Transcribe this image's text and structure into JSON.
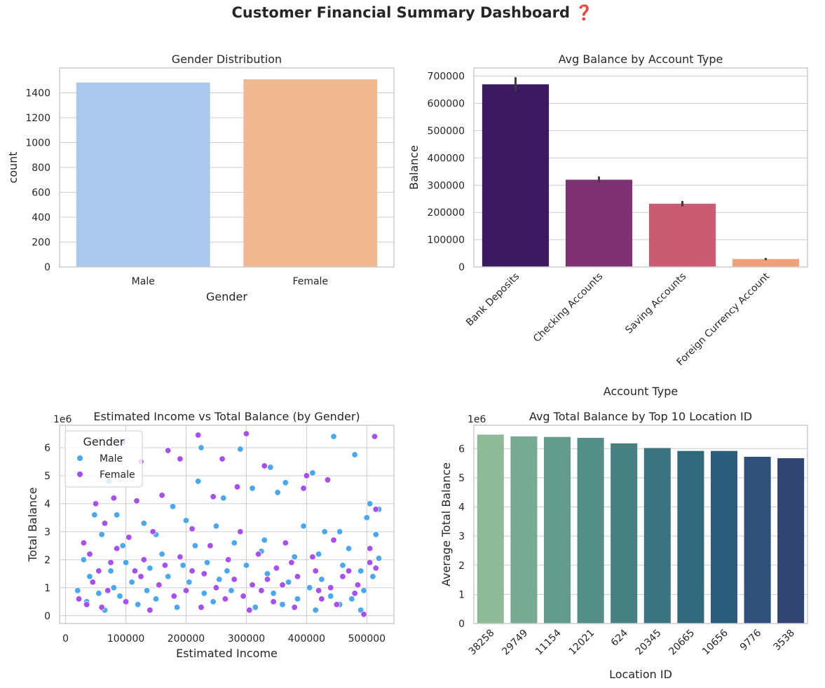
{
  "title": "Customer Financial Summary Dashboard ❓",
  "colors": {
    "grid": "#cccccc",
    "male_point": "#4aa8f0",
    "female_point": "#a84ff2"
  },
  "chart_data": [
    {
      "type": "bar",
      "title": "Gender Distribution",
      "xlabel": "Gender",
      "ylabel": "count",
      "categories": [
        "Male",
        "Female"
      ],
      "values": [
        1483,
        1509
      ],
      "colors": [
        "#a9c8ec",
        "#f0b891"
      ],
      "ylim": [
        0,
        1600
      ],
      "yticks": [
        0,
        200,
        400,
        600,
        800,
        1000,
        1200,
        1400
      ],
      "ytick_labels": [
        "0",
        "200",
        "400",
        "600",
        "800",
        "1000",
        "1200",
        "1400"
      ],
      "grid": true
    },
    {
      "type": "bar",
      "title": "Avg Balance by Account Type",
      "xlabel": "Account Type",
      "ylabel": "Balance",
      "categories": [
        "Bank Deposits",
        "Checking Accounts",
        "Saving Accounts",
        "Foreign Currency Account"
      ],
      "values": [
        670000,
        320000,
        232000,
        29000
      ],
      "error": [
        [
          646000,
          696000
        ],
        [
          310000,
          332000
        ],
        [
          222000,
          242000
        ],
        [
          25000,
          33000
        ]
      ],
      "colors": [
        "#3b1a61",
        "#7e3273",
        "#cb5b72",
        "#efa27a"
      ],
      "ylim": [
        0,
        730000
      ],
      "yticks": [
        0,
        100000,
        200000,
        300000,
        400000,
        500000,
        600000,
        700000
      ],
      "ytick_labels": [
        "0",
        "100000",
        "200000",
        "300000",
        "400000",
        "500000",
        "600000",
        "700000"
      ],
      "grid": true
    },
    {
      "type": "scatter",
      "title": "Estimated Income vs Total Balance (by Gender)",
      "xlabel": "Estimated Income",
      "ylabel": "Total Balance",
      "y_offset_label": "1e6",
      "xlim": [
        -10000,
        545000
      ],
      "ylim": [
        -0.28,
        6.8
      ],
      "xticks": [
        0,
        100000,
        200000,
        300000,
        400000,
        500000
      ],
      "xtick_labels": [
        "0",
        "100000",
        "200000",
        "300000",
        "400000",
        "500000"
      ],
      "yticks": [
        0,
        1,
        2,
        3,
        4,
        5,
        6
      ],
      "ytick_labels": [
        "0",
        "1",
        "2",
        "3",
        "4",
        "5",
        "6"
      ],
      "legend": {
        "title": "Gender",
        "position": "upper-left"
      },
      "series": [
        {
          "name": "Male",
          "color": "#4aa8f0",
          "points": [
            [
              72000,
              4.8
            ],
            [
              225000,
              6.0
            ],
            [
              290000,
              5.95
            ],
            [
              445000,
              6.4
            ],
            [
              480000,
              5.75
            ],
            [
              340000,
              5.3
            ],
            [
              410000,
              5.1
            ],
            [
              365000,
              4.75
            ],
            [
              505000,
              4.0
            ],
            [
              520000,
              3.8
            ],
            [
              515000,
              2.9
            ],
            [
              500000,
              3.5
            ],
            [
              455000,
              3.0
            ],
            [
              470000,
              2.4
            ],
            [
              430000,
              3.0
            ],
            [
              395000,
              3.2
            ],
            [
              352000,
              4.4
            ],
            [
              310000,
              4.55
            ],
            [
              262000,
              4.2
            ],
            [
              220000,
              4.8
            ],
            [
              178000,
              3.9
            ],
            [
              130000,
              3.3
            ],
            [
              85000,
              3.6
            ],
            [
              48000,
              3.6
            ],
            [
              30000,
              2.0
            ],
            [
              60000,
              2.9
            ],
            [
              95000,
              2.5
            ],
            [
              150000,
              2.9
            ],
            [
              200000,
              3.4
            ],
            [
              250000,
              3.2
            ],
            [
              280000,
              2.6
            ],
            [
              330000,
              2.7
            ],
            [
              380000,
              2.1
            ],
            [
              420000,
              2.2
            ],
            [
              460000,
              1.8
            ],
            [
              490000,
              1.6
            ],
            [
              510000,
              1.4
            ],
            [
              495000,
              0.9
            ],
            [
              475000,
              0.6
            ],
            [
              440000,
              0.7
            ],
            [
              405000,
              1.0
            ],
            [
              370000,
              1.2
            ],
            [
              335000,
              1.5
            ],
            [
              300000,
              1.8
            ],
            [
              268000,
              1.6
            ],
            [
              235000,
              1.9
            ],
            [
              205000,
              1.2
            ],
            [
              170000,
              1.4
            ],
            [
              140000,
              1.7
            ],
            [
              110000,
              1.2
            ],
            [
              80000,
              1.0
            ],
            [
              55000,
              0.8
            ],
            [
              35000,
              0.5
            ],
            [
              20000,
              0.9
            ],
            [
              65000,
              0.2
            ],
            [
              120000,
              0.4
            ],
            [
              185000,
              0.3
            ],
            [
              245000,
              0.5
            ],
            [
              315000,
              0.3
            ],
            [
              385000,
              0.6
            ],
            [
              455000,
              0.4
            ],
            [
              490000,
              0.2
            ],
            [
              100000,
              1.9
            ],
            [
              160000,
              2.2
            ],
            [
              215000,
              2.5
            ],
            [
              275000,
              0.9
            ],
            [
              345000,
              0.8
            ],
            [
              425000,
              1.3
            ],
            [
              520000,
              2.05
            ],
            [
              40000,
              1.4
            ],
            [
              75000,
              1.6
            ],
            [
              135000,
              0.9
            ],
            [
              195000,
              1.8
            ],
            [
              255000,
              1.3
            ],
            [
              325000,
              2.3
            ],
            [
              360000,
              0.4
            ],
            [
              415000,
              0.2
            ],
            [
              230000,
              0.8
            ],
            [
              90000,
              0.7
            ],
            [
              150000,
              0.6
            ]
          ]
        },
        {
          "name": "Female",
          "color": "#a84ff2",
          "points": [
            [
              300000,
              6.5
            ],
            [
              220000,
              6.45
            ],
            [
              95000,
              6.2
            ],
            [
              513000,
              6.4
            ],
            [
              170000,
              5.9
            ],
            [
              190000,
              5.6
            ],
            [
              125000,
              5.5
            ],
            [
              330000,
              5.35
            ],
            [
              260000,
              5.6
            ],
            [
              400000,
              5.0
            ],
            [
              435000,
              4.85
            ],
            [
              395000,
              4.55
            ],
            [
              285000,
              4.6
            ],
            [
              245000,
              4.25
            ],
            [
              160000,
              4.3
            ],
            [
              118000,
              4.1
            ],
            [
              80000,
              4.2
            ],
            [
              50000,
              4.0
            ],
            [
              30000,
              2.6
            ],
            [
              65000,
              3.3
            ],
            [
              105000,
              2.8
            ],
            [
              145000,
              3.0
            ],
            [
              210000,
              3.1
            ],
            [
              240000,
              2.5
            ],
            [
              290000,
              3.0
            ],
            [
              320000,
              2.2
            ],
            [
              365000,
              2.6
            ],
            [
              410000,
              2.1
            ],
            [
              445000,
              2.7
            ],
            [
              470000,
              1.6
            ],
            [
              505000,
              1.9
            ],
            [
              515000,
              1.7
            ],
            [
              485000,
              1.1
            ],
            [
              450000,
              0.4
            ],
            [
              420000,
              0.9
            ],
            [
              385000,
              1.4
            ],
            [
              350000,
              1.7
            ],
            [
              310000,
              1.1
            ],
            [
              270000,
              2.0
            ],
            [
              230000,
              1.5
            ],
            [
              190000,
              2.1
            ],
            [
              155000,
              1.1
            ],
            [
              115000,
              1.6
            ],
            [
              75000,
              1.9
            ],
            [
              45000,
              1.2
            ],
            [
              22000,
              0.6
            ],
            [
              60000,
              0.3
            ],
            [
              100000,
              0.5
            ],
            [
              140000,
              0.2
            ],
            [
              180000,
              0.7
            ],
            [
              225000,
              0.3
            ],
            [
              265000,
              0.6
            ],
            [
              305000,
              0.2
            ],
            [
              345000,
              0.5
            ],
            [
              380000,
              0.3
            ],
            [
              425000,
              0.6
            ],
            [
              495000,
              0.05
            ],
            [
              40000,
              2.2
            ],
            [
              85000,
              2.4
            ],
            [
              130000,
              2.0
            ],
            [
              200000,
              0.9
            ],
            [
              250000,
              1.0
            ],
            [
              295000,
              0.7
            ],
            [
              335000,
              1.3
            ],
            [
              375000,
              1.9
            ],
            [
              415000,
              1.6
            ],
            [
              460000,
              1.4
            ],
            [
              515000,
              3.8
            ],
            [
              505000,
              2.4
            ],
            [
              125000,
              1.4
            ],
            [
              165000,
              1.8
            ],
            [
              70000,
              0.9
            ],
            [
              35000,
              0.4
            ],
            [
              55000,
              1.6
            ],
            [
              210000,
              1.6
            ],
            [
              280000,
              1.3
            ],
            [
              325000,
              0.9
            ],
            [
              360000,
              1.1
            ],
            [
              440000,
              1.0
            ],
            [
              480000,
              0.8
            ]
          ]
        }
      ],
      "grid": true
    },
    {
      "type": "bar",
      "title": "Avg Total Balance by Top 10 Location ID",
      "xlabel": "Location ID",
      "ylabel": "Average Total Balance",
      "y_offset_label": "1e6",
      "categories": [
        "38258",
        "29749",
        "11154",
        "12021",
        "624",
        "20345",
        "20665",
        "10656",
        "9776",
        "3538"
      ],
      "values": [
        6.48,
        6.42,
        6.4,
        6.37,
        6.18,
        6.02,
        5.92,
        5.92,
        5.72,
        5.67
      ],
      "colors": [
        "#8fba98",
        "#78aa92",
        "#649c8b",
        "#548f87",
        "#468180",
        "#3b7480",
        "#30687c",
        "#2c5d7b",
        "#2e5079",
        "#324470"
      ],
      "ylim": [
        0,
        6.8
      ],
      "yticks": [
        0,
        1,
        2,
        3,
        4,
        5,
        6
      ],
      "ytick_labels": [
        "0",
        "1",
        "2",
        "3",
        "4",
        "5",
        "6"
      ],
      "grid": true
    }
  ]
}
